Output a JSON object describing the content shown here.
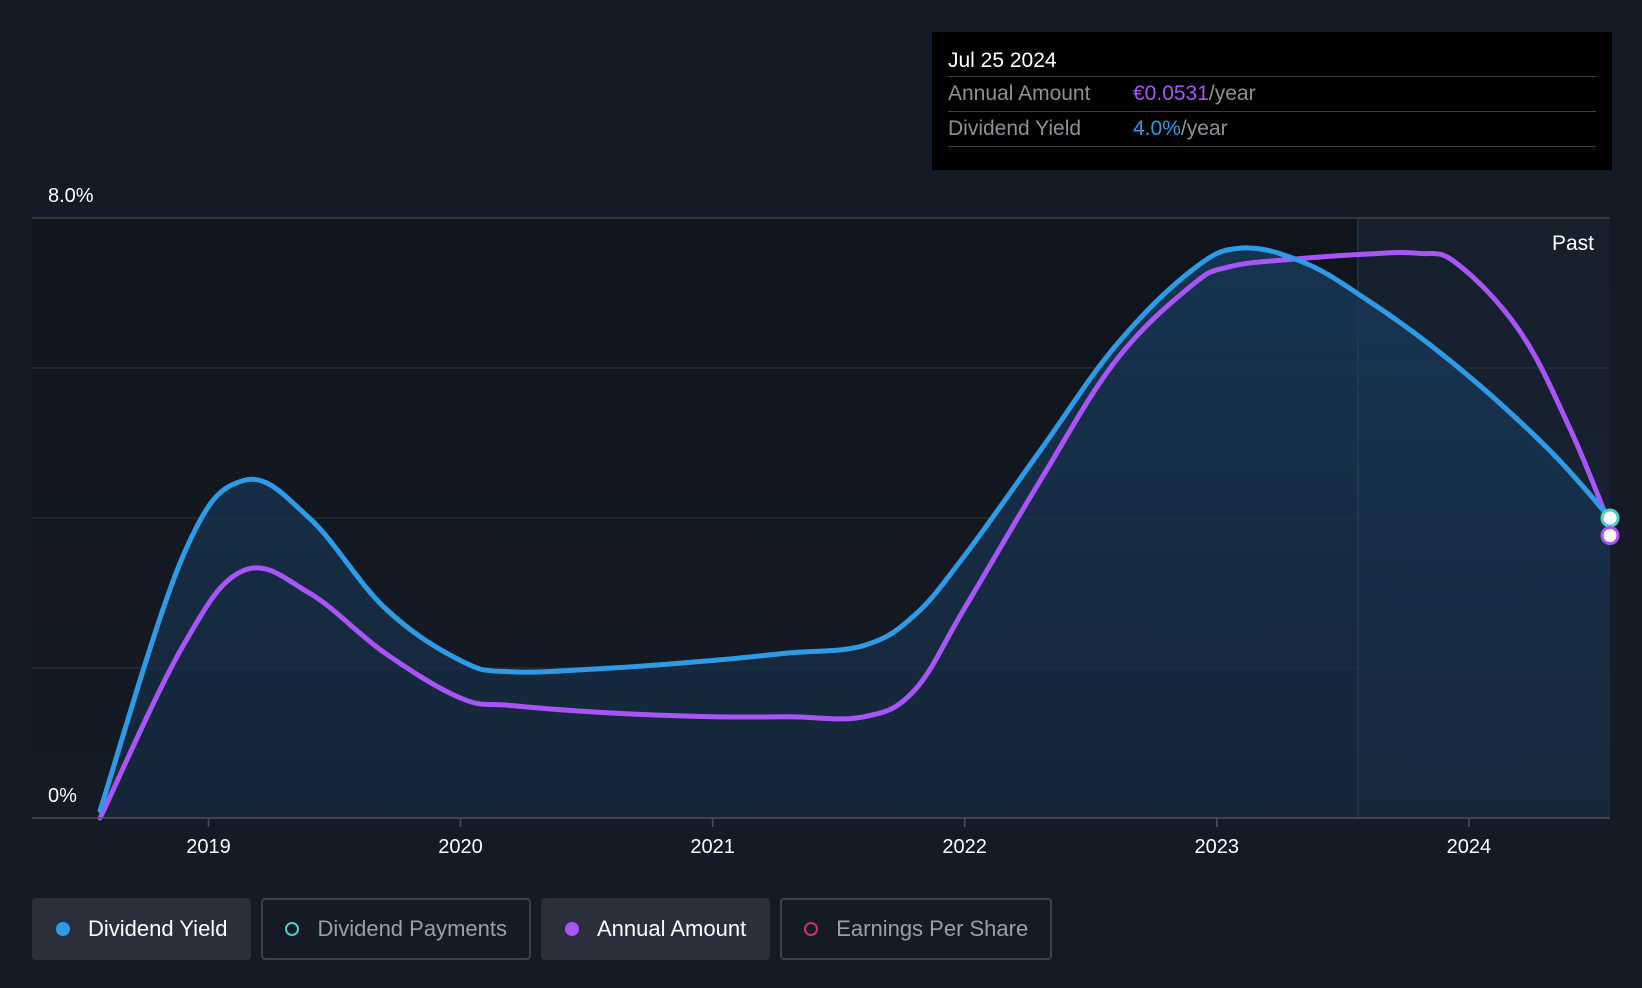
{
  "tooltip": {
    "date": "Jul 25 2024",
    "rows": [
      {
        "label": "Annual Amount",
        "value": "€0.0531",
        "unit": "/year",
        "color": "#a855f7"
      },
      {
        "label": "Dividend Yield",
        "value": "4.0%",
        "unit": "/year",
        "color": "#2e9be6"
      }
    ]
  },
  "legend": [
    {
      "label": "Dividend Yield",
      "color": "#2e9be6",
      "active": true,
      "filled": true
    },
    {
      "label": "Dividend Payments",
      "color": "#4ecdc4",
      "active": false,
      "filled": false
    },
    {
      "label": "Annual Amount",
      "color": "#a855f7",
      "active": true,
      "filled": true
    },
    {
      "label": "Earnings Per Share",
      "color": "#c2366d",
      "active": false,
      "filled": false
    }
  ],
  "chart_data": {
    "type": "line",
    "title": "",
    "xlabel": "",
    "ylabel": "",
    "ylim": [
      0,
      8
    ],
    "y_ticks": [
      "8.0%",
      "0%"
    ],
    "x_tick_labels": [
      "2019",
      "2020",
      "2021",
      "2022",
      "2023",
      "2024"
    ],
    "x_tick_values": [
      2019,
      2020,
      2021,
      2022,
      2023,
      2024
    ],
    "xlim": [
      2018.3,
      2024.56
    ],
    "past_start": 2023.56,
    "past_label": "Past",
    "grid": true,
    "series": [
      {
        "name": "Dividend Yield",
        "color": "#2e9be6",
        "x": [
          2018.57,
          2018.9,
          2019.14,
          2019.4,
          2019.7,
          2020.0,
          2020.2,
          2020.6,
          2021.0,
          2021.3,
          2021.6,
          2021.8,
          2022.0,
          2022.3,
          2022.6,
          2022.9,
          2023.1,
          2023.35,
          2023.6,
          2023.85,
          2024.1,
          2024.35,
          2024.56
        ],
        "y": [
          0.1,
          3.5,
          4.5,
          4.0,
          2.8,
          2.1,
          1.95,
          2.0,
          2.1,
          2.2,
          2.3,
          2.7,
          3.5,
          4.9,
          6.3,
          7.3,
          7.6,
          7.4,
          6.9,
          6.3,
          5.6,
          4.8,
          4.0
        ]
      },
      {
        "name": "Annual Amount",
        "color": "#a855f7",
        "x": [
          2018.57,
          2018.9,
          2019.14,
          2019.4,
          2019.7,
          2020.0,
          2020.2,
          2020.6,
          2021.0,
          2021.3,
          2021.6,
          2021.8,
          2022.0,
          2022.3,
          2022.6,
          2022.9,
          2023.05,
          2023.3,
          2023.6,
          2023.8,
          2023.95,
          2024.2,
          2024.4,
          2024.56
        ],
        "y": [
          0,
          2.3,
          3.3,
          3.0,
          2.2,
          1.6,
          1.5,
          1.4,
          1.35,
          1.35,
          1.35,
          1.7,
          2.8,
          4.5,
          6.1,
          7.1,
          7.35,
          7.45,
          7.52,
          7.53,
          7.4,
          6.5,
          5.2,
          3.9
        ]
      }
    ]
  }
}
